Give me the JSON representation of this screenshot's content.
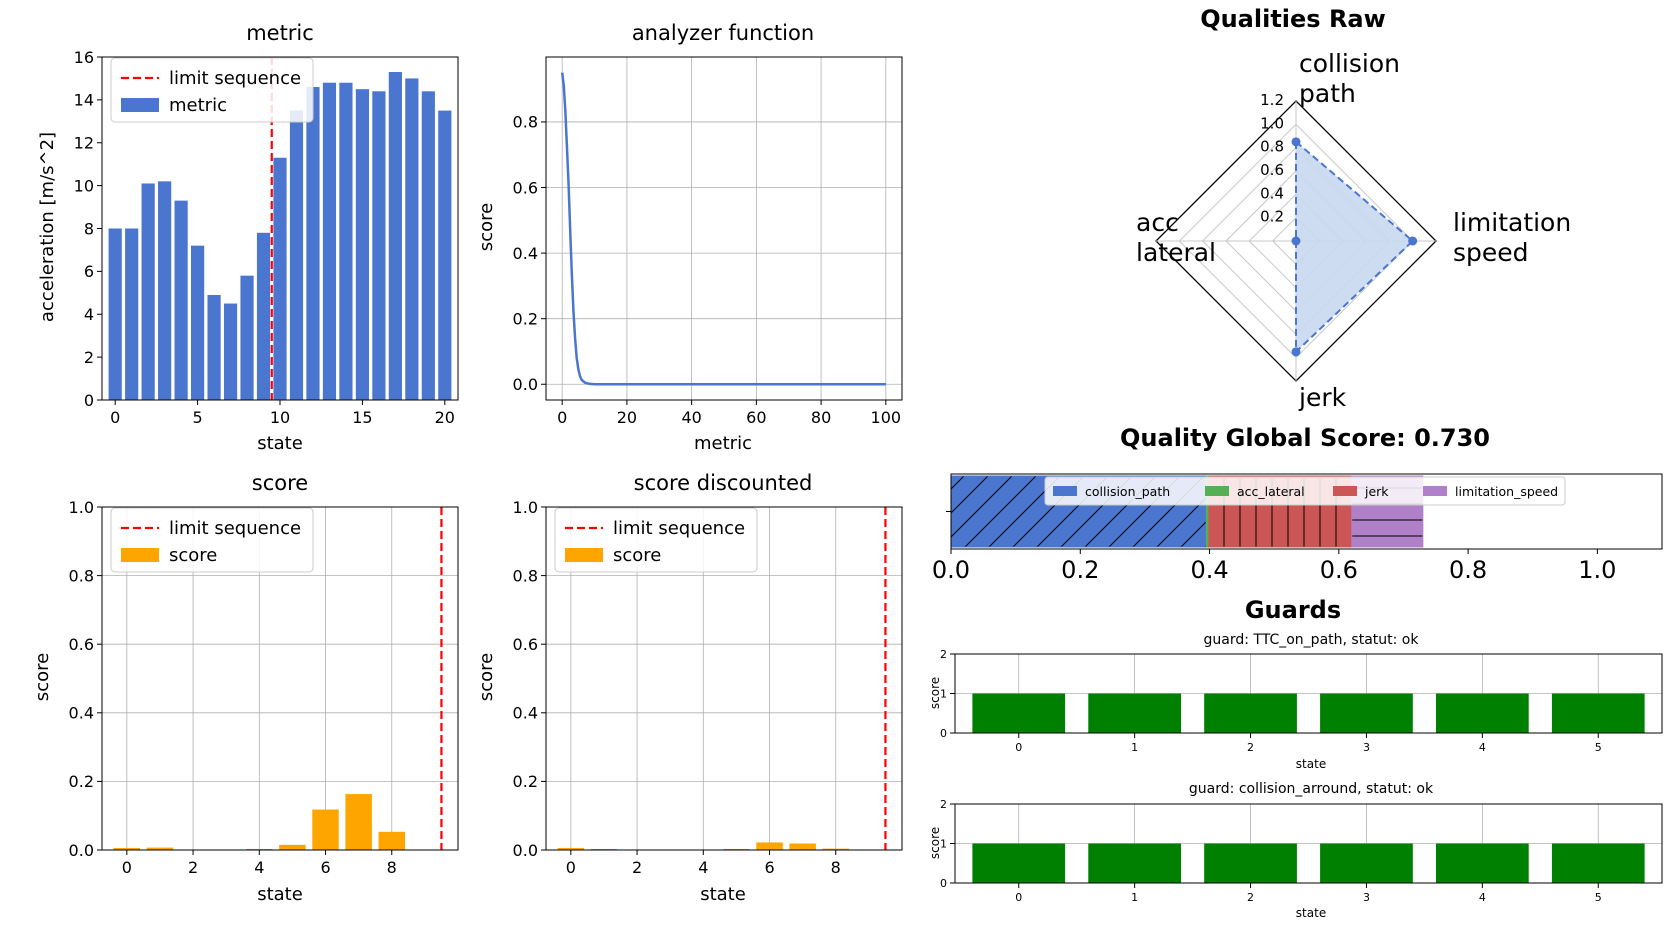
{
  "chart_data": [
    {
      "id": "metric",
      "type": "bar",
      "title": "metric",
      "xlabel": "state",
      "ylabel": "acceleration [m/s^2]",
      "xlim": [
        -0.8,
        20.8
      ],
      "ylim": [
        0,
        16
      ],
      "xticks": [
        0,
        5,
        10,
        15,
        20
      ],
      "yticks": [
        0,
        2,
        4,
        6,
        8,
        10,
        12,
        14,
        16
      ],
      "grid": false,
      "legend": {
        "placement": "upper-left",
        "entries": [
          {
            "label": "limit sequence",
            "kind": "dashed-line",
            "color": "#ff0000"
          },
          {
            "label": "metric",
            "kind": "patch",
            "color": "#4a76cf"
          }
        ]
      },
      "limit_sequence_x": 9.5,
      "bar_color": "#4a76cf",
      "x": [
        0,
        1,
        2,
        3,
        4,
        5,
        6,
        7,
        8,
        9,
        10,
        11,
        12,
        13,
        14,
        15,
        16,
        17,
        18,
        19,
        20
      ],
      "values": [
        8.0,
        8.0,
        10.1,
        10.2,
        9.3,
        7.2,
        4.9,
        4.5,
        5.8,
        7.8,
        11.3,
        13.5,
        14.6,
        14.8,
        14.8,
        14.5,
        14.4,
        15.3,
        15.0,
        14.4,
        13.5
      ]
    },
    {
      "id": "analyzer",
      "type": "line",
      "title": "analyzer function",
      "xlabel": "metric",
      "ylabel": "score",
      "xlim": [
        -5,
        105
      ],
      "ylim": [
        -0.048,
        0.998
      ],
      "xticks": [
        0,
        20,
        40,
        60,
        80,
        100
      ],
      "yticks": [
        0.0,
        0.2,
        0.4,
        0.6,
        0.8
      ],
      "grid": true,
      "line_color": "#4a76cf",
      "x": [
        0,
        0.5,
        1,
        1.5,
        2,
        2.5,
        3,
        3.5,
        4,
        4.5,
        5,
        5.5,
        6,
        7,
        8,
        10,
        15,
        20,
        40,
        60,
        80,
        100
      ],
      "y": [
        0.95,
        0.91,
        0.83,
        0.72,
        0.6,
        0.46,
        0.33,
        0.22,
        0.14,
        0.08,
        0.045,
        0.025,
        0.014,
        0.005,
        0.002,
        0.0,
        0.0,
        0.0,
        0.0,
        0.0,
        0.0,
        0.0
      ]
    },
    {
      "id": "score",
      "type": "bar",
      "title": "score",
      "xlabel": "state",
      "ylabel": "score",
      "xlim": [
        -0.75,
        10.0
      ],
      "ylim": [
        0,
        1.0
      ],
      "xticks": [
        0,
        2,
        4,
        6,
        8
      ],
      "yticks": [
        0.0,
        0.2,
        0.4,
        0.6,
        0.8,
        1.0
      ],
      "grid": true,
      "legend": {
        "placement": "upper-left",
        "entries": [
          {
            "label": "limit sequence",
            "kind": "dashed-line",
            "color": "#ff0000"
          },
          {
            "label": "score",
            "kind": "patch",
            "color": "#ffa500"
          }
        ]
      },
      "limit_sequence_x": 9.5,
      "bar_color": "#ffa500",
      "x": [
        0,
        1,
        2,
        3,
        4,
        5,
        6,
        7,
        8
      ],
      "values": [
        0.006,
        0.007,
        0.0,
        0.0,
        0.003,
        0.015,
        0.118,
        0.163,
        0.053
      ]
    },
    {
      "id": "score-discounted",
      "type": "bar",
      "title": "score discounted",
      "xlabel": "state",
      "ylabel": "score",
      "xlim": [
        -0.75,
        10.0
      ],
      "ylim": [
        0,
        1.0
      ],
      "xticks": [
        0,
        2,
        4,
        6,
        8
      ],
      "yticks": [
        0.0,
        0.2,
        0.4,
        0.6,
        0.8,
        1.0
      ],
      "grid": true,
      "legend": {
        "placement": "upper-left",
        "entries": [
          {
            "label": "limit sequence",
            "kind": "dashed-line",
            "color": "#ff0000"
          },
          {
            "label": "score",
            "kind": "patch",
            "color": "#ffa500"
          }
        ]
      },
      "limit_sequence_x": 9.5,
      "bar_color": "#ffa500",
      "x": [
        0,
        1,
        2,
        3,
        4,
        5,
        6,
        7,
        8
      ],
      "values": [
        0.006,
        0.003,
        0.0,
        0.0,
        0.0,
        0.003,
        0.022,
        0.019,
        0.004
      ]
    },
    {
      "id": "qualities-raw",
      "type": "radar",
      "title": "Qualities Raw",
      "axes": [
        "collision\npath",
        "limitation\nspeed",
        "jerk",
        "acc\nlateral"
      ],
      "values": [
        0.85,
        1.0,
        0.95,
        0.0
      ],
      "rlim": [
        0,
        1.2
      ],
      "rticks": [
        "0.2",
        "0.4",
        "0.6",
        "0.8",
        "1.0",
        "1.2"
      ],
      "color": "#4a76cf",
      "fill_color": "#c9d8ef"
    },
    {
      "id": "quality-global",
      "type": "stacked-bar-horizontal",
      "title": "Quality Global Score: 0.730",
      "xlim": [
        0,
        1.1
      ],
      "xticks": [
        "0.0",
        "0.2",
        "0.4",
        "0.6",
        "0.8",
        "1.0"
      ],
      "legend": {
        "placement": "top",
        "entries": [
          "collision_path",
          "acc_lateral",
          "jerk",
          "limitation_speed"
        ]
      },
      "series": [
        {
          "name": "collision_path",
          "value": 0.395,
          "color": "#4a76cf",
          "hatch": "diagonal"
        },
        {
          "name": "acc_lateral",
          "value": 0.004,
          "color": "#55b055",
          "hatch": "none"
        },
        {
          "name": "jerk",
          "value": 0.221,
          "color": "#cc5555",
          "hatch": "vertical"
        },
        {
          "name": "limitation_speed",
          "value": 0.11,
          "color": "#b080c8",
          "hatch": "horizontal"
        }
      ]
    },
    {
      "id": "guards-ttc",
      "type": "bar",
      "section_title": "Guards",
      "title": "guard: TTC_on_path, statut: ok",
      "xlabel": "state",
      "ylabel": "score",
      "xlim": [
        -0.55,
        5.55
      ],
      "ylim": [
        0,
        2
      ],
      "xticks": [
        0,
        1,
        2,
        3,
        4,
        5
      ],
      "yticks": [
        0,
        1,
        2
      ],
      "grid": true,
      "bar_color": "#008000",
      "x": [
        0,
        1,
        2,
        3,
        4,
        5
      ],
      "values": [
        1,
        1,
        1,
        1,
        1,
        1
      ]
    },
    {
      "id": "guards-collision",
      "type": "bar",
      "title": "guard: collision_arround, statut: ok",
      "xlabel": "state",
      "ylabel": "score",
      "xlim": [
        -0.55,
        5.55
      ],
      "ylim": [
        0,
        2
      ],
      "xticks": [
        0,
        1,
        2,
        3,
        4,
        5
      ],
      "yticks": [
        0,
        1,
        2
      ],
      "grid": true,
      "bar_color": "#008000",
      "x": [
        0,
        1,
        2,
        3,
        4,
        5
      ],
      "values": [
        1,
        1,
        1,
        1,
        1,
        1
      ]
    }
  ]
}
